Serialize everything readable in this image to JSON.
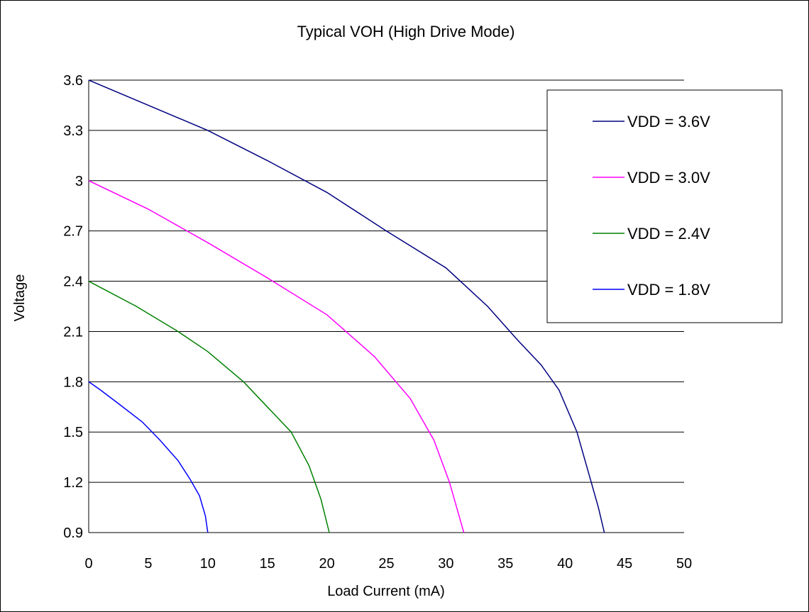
{
  "chart_data": {
    "type": "line",
    "title": "Typical VOH (High Drive Mode)",
    "xlabel": "Load Current (mA)",
    "ylabel": "Voltage",
    "xlim": [
      0,
      50
    ],
    "ylim": [
      0.9,
      3.6
    ],
    "xticks": [
      "0",
      "5",
      "10",
      "15",
      "20",
      "25",
      "30",
      "35",
      "40",
      "45",
      "50"
    ],
    "yticks": [
      "0.9",
      "1.2",
      "1.5",
      "1.8",
      "2.1",
      "2.4",
      "2.7",
      "3",
      "3.3",
      "3.6"
    ],
    "grid": "horizontal",
    "legend_position": "right",
    "series": [
      {
        "name": "VDD = 3.6V",
        "color": "#000080",
        "x": [
          0,
          5,
          10,
          15,
          20,
          25,
          30,
          33.5,
          36,
          38,
          39.5,
          41,
          42,
          42.8,
          43.3
        ],
        "y": [
          3.6,
          3.45,
          3.3,
          3.12,
          2.93,
          2.7,
          2.48,
          2.25,
          2.05,
          1.9,
          1.75,
          1.5,
          1.25,
          1.05,
          0.9
        ]
      },
      {
        "name": "VDD = 3.0V",
        "color": "#ff00ff",
        "x": [
          0,
          5,
          10,
          15,
          20,
          24,
          27,
          29,
          30.3,
          31.1,
          31.5
        ],
        "y": [
          3.0,
          2.83,
          2.63,
          2.42,
          2.2,
          1.95,
          1.7,
          1.45,
          1.2,
          1.0,
          0.9
        ],
        "y_note": ""
      },
      {
        "name": "VDD = 2.4V",
        "color": "#008000",
        "x": [
          0,
          4,
          7.5,
          10,
          13,
          15,
          17,
          18.5,
          19.5,
          20.2
        ],
        "y": [
          2.4,
          2.25,
          2.1,
          1.98,
          1.8,
          1.65,
          1.5,
          1.3,
          1.1,
          0.9
        ]
      },
      {
        "name": "VDD = 1.8V",
        "color": "#0000ff",
        "x": [
          0,
          1,
          2.5,
          4.5,
          6,
          7.5,
          8.5,
          9.3,
          9.8,
          10
        ],
        "y": [
          1.8,
          1.75,
          1.67,
          1.56,
          1.45,
          1.33,
          1.22,
          1.12,
          1.0,
          0.9
        ]
      }
    ]
  }
}
